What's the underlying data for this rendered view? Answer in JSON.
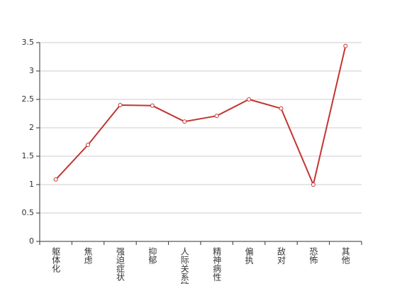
{
  "chart_data": {
    "type": "line",
    "categories": [
      "躯体化",
      "焦虑",
      "强迫症状",
      "抑郁",
      "人际关系敏感",
      "精神病性",
      "偏执",
      "敌对",
      "恐怖",
      "其他"
    ],
    "values": [
      1.09,
      1.7,
      2.4,
      2.39,
      2.11,
      2.21,
      2.5,
      2.34,
      1.0,
      3.44
    ],
    "color": "#c23531",
    "ylim": [
      0,
      3.5
    ],
    "yticks": [
      0,
      0.5,
      1,
      1.5,
      2,
      2.5,
      3,
      3.5
    ],
    "grid": true
  }
}
